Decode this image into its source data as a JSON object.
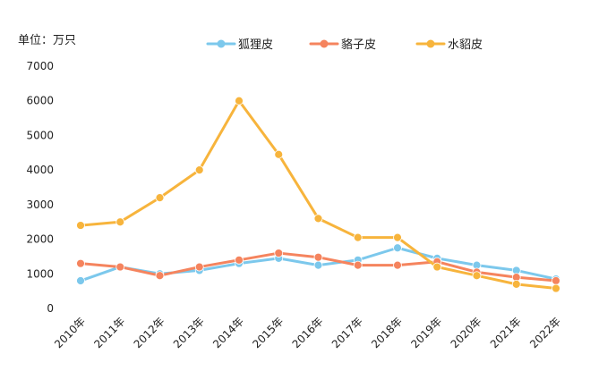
{
  "chart_data": {
    "type": "line",
    "unit_label": "单位：万只",
    "categories": [
      "2010年",
      "2011年",
      "2012年",
      "2013年",
      "2014年",
      "2015年",
      "2016年",
      "2017年",
      "2018年",
      "2019年",
      "2020年",
      "2021年",
      "2022年"
    ],
    "ylim": [
      0,
      7000
    ],
    "yticks": [
      "0",
      "1000",
      "2000",
      "3000",
      "4000",
      "5000",
      "6000",
      "7000"
    ],
    "grid": false,
    "legend_position": "top-center",
    "series": [
      {
        "name": "狐狸皮",
        "color": "#7cc8ec",
        "values": [
          800,
          1200,
          1000,
          1100,
          1300,
          1450,
          1250,
          1400,
          1750,
          1450,
          1250,
          1100,
          850
        ]
      },
      {
        "name": "貉子皮",
        "color": "#f5845e",
        "values": [
          1300,
          1200,
          950,
          1200,
          1400,
          1600,
          1480,
          1250,
          1250,
          1350,
          1050,
          900,
          800
        ]
      },
      {
        "name": "水貂皮",
        "color": "#f7b43c",
        "values": [
          2400,
          2500,
          3200,
          4000,
          6000,
          4450,
          2600,
          2050,
          2050,
          1200,
          950,
          700,
          580
        ]
      }
    ]
  }
}
